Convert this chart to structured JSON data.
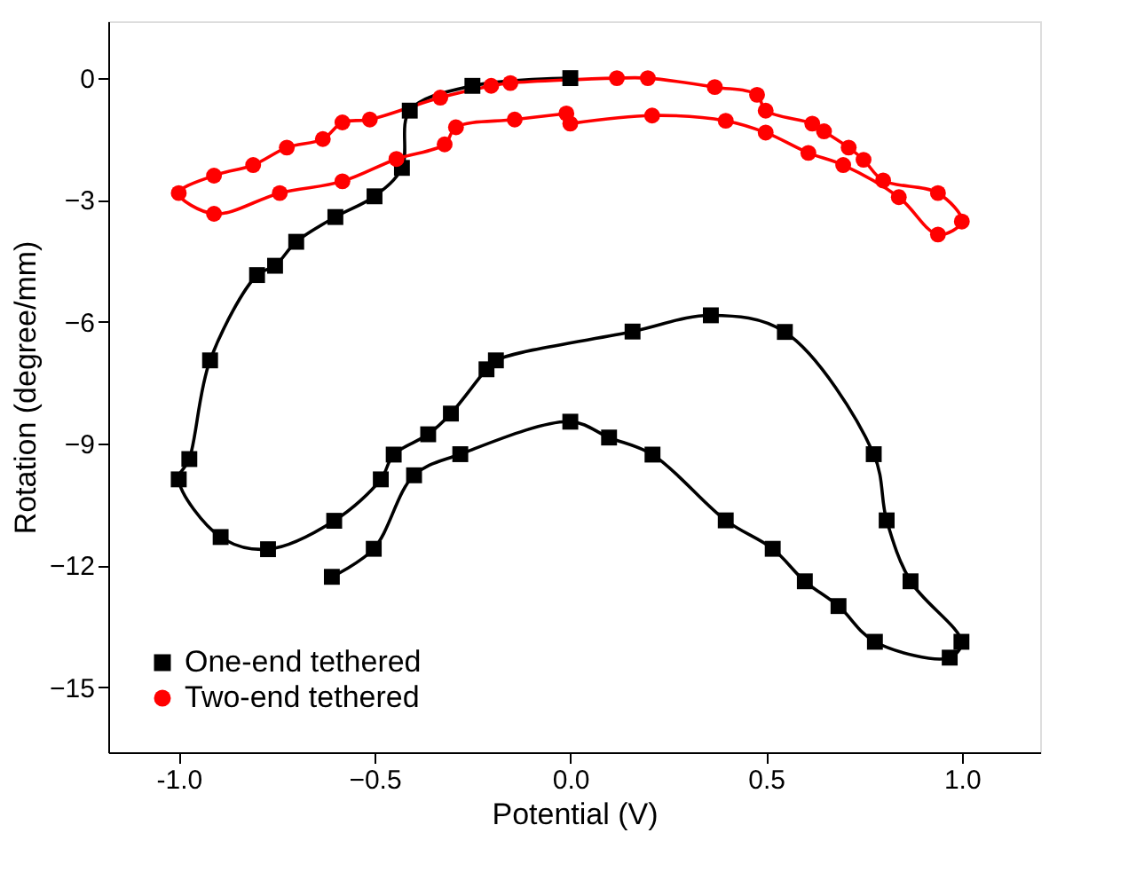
{
  "chart_data": {
    "type": "line",
    "xlabel": "Potential (V)",
    "ylabel": "Rotation (degree/mm)",
    "xlim": [
      -1.18,
      1.2
    ],
    "ylim": [
      -16.6,
      1.4
    ],
    "xticks": [
      {
        "value": -1.0,
        "label": "-1.0"
      },
      -0.5,
      {
        "value": 0,
        "label": "0.0"
      },
      0.5,
      {
        "value": 1.0,
        "label": "1.0"
      }
    ],
    "yticks": [
      -15,
      -12,
      -9,
      -6,
      -3,
      0
    ],
    "grid": false,
    "legend": "bottom left",
    "line_style": "solid",
    "series": [
      {
        "name": "One-end tethered",
        "color": "#000000",
        "marker": "square",
        "x": [
          0,
          -0.25,
          -0.41,
          -0.43,
          -0.5,
          -0.6,
          -0.7,
          -0.754,
          -0.8,
          -0.92,
          -0.973,
          -1.0,
          -0.893,
          -0.772,
          -0.603,
          -0.484,
          -0.451,
          -0.363,
          -0.305,
          -0.214,
          -0.19,
          0.159,
          0.359,
          0.548,
          0.775,
          0.808,
          0.869,
          0.999,
          0.969,
          0.778,
          0.685,
          0.599,
          0.517,
          0.397,
          0.21,
          0.099,
          0.0,
          -0.281,
          -0.399,
          -0.502,
          -0.609
        ],
        "values": [
          0,
          -0.19,
          -0.8,
          -2.21,
          -2.91,
          -3.42,
          -4.03,
          -4.62,
          -4.85,
          -6.95,
          -9.38,
          -9.88,
          -11.3,
          -11.6,
          -10.9,
          -9.88,
          -9.27,
          -8.77,
          -8.26,
          -7.17,
          -6.95,
          -6.24,
          -5.84,
          -6.25,
          -9.26,
          -10.89,
          -12.39,
          -13.88,
          -14.27,
          -13.88,
          -13.0,
          -12.39,
          -11.59,
          -10.89,
          -9.27,
          -8.85,
          -8.46,
          -9.26,
          -9.78,
          -11.59,
          -12.28
        ]
      },
      {
        "name": "Two-end tethered",
        "color": "#ff0000",
        "marker": "circle",
        "x": [
          0,
          0.209,
          0.397,
          0.499,
          0.608,
          0.697,
          0.839,
          0.939,
          1.0,
          0.939,
          0.799,
          0.749,
          0.711,
          0.648,
          0.618,
          0.499,
          0.477,
          0.369,
          0.198,
          0.119,
          -0.153,
          -0.202,
          -0.332,
          -0.512,
          -0.582,
          -0.632,
          -0.724,
          -0.81,
          -0.91,
          -1.0,
          -0.91,
          -0.742,
          -0.582,
          -0.444,
          -0.321,
          -0.292,
          -0.142,
          -0.01
        ],
        "values": [
          -1.12,
          -0.92,
          -1.05,
          -1.34,
          -1.84,
          -2.14,
          -2.93,
          -3.85,
          -3.53,
          -2.83,
          -2.52,
          -2.01,
          -1.71,
          -1.31,
          -1.12,
          -0.8,
          -0.41,
          -0.22,
          0,
          0,
          -0.12,
          -0.19,
          -0.48,
          -1.02,
          -1.09,
          -1.5,
          -1.71,
          -2.14,
          -2.4,
          -2.83,
          -3.34,
          -2.83,
          -2.54,
          -1.99,
          -1.63,
          -1.21,
          -1.02,
          -0.87
        ]
      }
    ]
  }
}
